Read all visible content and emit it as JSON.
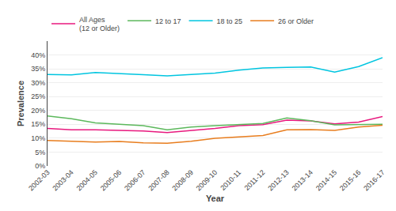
{
  "chart_data": {
    "type": "line",
    "xlabel": "Year",
    "ylabel": "Prevalence",
    "categories": [
      "2002-03",
      "2003-04",
      "2004-05",
      "2005-06",
      "2006-07",
      "2007-08",
      "2008-09",
      "2009-10",
      "2010-11",
      "2011-12",
      "2012-13",
      "2013-14",
      "2014-15",
      "2015-16",
      "2016-17"
    ],
    "series": [
      {
        "name": "All Ages\n(12 or Older)",
        "color": "#e8197e",
        "values": [
          13.5,
          13.0,
          13.0,
          12.9,
          12.6,
          12.0,
          12.7,
          13.5,
          14.5,
          14.9,
          16.5,
          16.2,
          15.2,
          15.8,
          17.8
        ]
      },
      {
        "name": "12 to 17",
        "color": "#5cb85c",
        "values": [
          18.0,
          17.0,
          15.5,
          15.0,
          14.5,
          13.0,
          14.0,
          14.5,
          14.8,
          15.3,
          17.3,
          16.3,
          14.8,
          15.0,
          15.0
        ]
      },
      {
        "name": "18 to 25",
        "color": "#00c5e0",
        "values": [
          33.0,
          32.8,
          33.7,
          33.4,
          32.9,
          32.5,
          33.0,
          33.5,
          34.5,
          35.3,
          35.5,
          35.7,
          33.8,
          35.8,
          39.0
        ]
      },
      {
        "name": "26 or Older",
        "color": "#e87d1e",
        "values": [
          9.2,
          8.8,
          8.6,
          8.8,
          8.3,
          8.2,
          8.9,
          10.0,
          10.5,
          11.0,
          13.0,
          13.1,
          12.8,
          14.0,
          14.7
        ]
      }
    ],
    "ylim": [
      0,
      45
    ],
    "yticks": [
      {
        "value": 0,
        "label": "0%"
      },
      {
        "value": 5,
        "label": "5%"
      },
      {
        "value": 10,
        "label": "10%"
      },
      {
        "value": 15,
        "label": "15%"
      },
      {
        "value": 20,
        "label": "20%"
      },
      {
        "value": 25,
        "label": "25%"
      },
      {
        "value": 30,
        "label": "30%"
      },
      {
        "value": 35,
        "label": "35%"
      },
      {
        "value": 40,
        "label": "40%"
      }
    ],
    "grid": true,
    "legend": "upper left"
  }
}
